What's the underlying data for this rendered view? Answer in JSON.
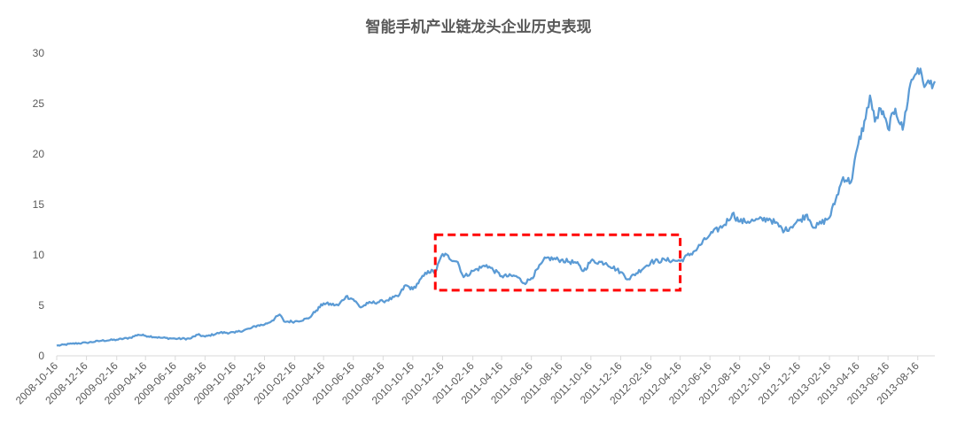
{
  "chart_data": {
    "type": "line",
    "title": "智能手机产业链龙头企业历史表现",
    "xlabel": "",
    "ylabel": "",
    "ylim": [
      0,
      30
    ],
    "yticks": [
      0,
      5,
      10,
      15,
      20,
      25,
      30
    ],
    "xlim": [
      "2008-10-16",
      "2013-09-20"
    ],
    "xticks": [
      "2008-10-16",
      "2008-12-16",
      "2009-02-16",
      "2009-04-16",
      "2009-06-16",
      "2009-08-16",
      "2009-10-16",
      "2009-12-16",
      "2010-02-16",
      "2010-04-16",
      "2010-06-16",
      "2010-08-16",
      "2010-10-16",
      "2010-12-16",
      "2011-02-16",
      "2011-04-16",
      "2011-06-16",
      "2011-08-16",
      "2011-10-16",
      "2011-12-16",
      "2012-02-16",
      "2012-04-16",
      "2012-06-16",
      "2012-08-16",
      "2012-10-16",
      "2012-12-16",
      "2013-02-16",
      "2013-04-16",
      "2013-06-16",
      "2013-08-16"
    ],
    "grid": false,
    "legend": "none",
    "series": [
      {
        "color": "#5b9bd5",
        "points": [
          [
            "2008-10-16",
            1.0
          ],
          [
            "2008-11-16",
            1.2
          ],
          [
            "2008-12-16",
            1.3
          ],
          [
            "2009-01-16",
            1.5
          ],
          [
            "2009-02-16",
            1.6
          ],
          [
            "2009-03-16",
            1.8
          ],
          [
            "2009-04-01",
            2.1
          ],
          [
            "2009-04-16",
            2.0
          ],
          [
            "2009-05-16",
            1.8
          ],
          [
            "2009-06-16",
            1.7
          ],
          [
            "2009-07-16",
            1.7
          ],
          [
            "2009-08-01",
            2.1
          ],
          [
            "2009-08-16",
            1.9
          ],
          [
            "2009-09-16",
            2.3
          ],
          [
            "2009-10-16",
            2.3
          ],
          [
            "2009-11-16",
            2.7
          ],
          [
            "2009-12-01",
            3.0
          ],
          [
            "2009-12-16",
            3.1
          ],
          [
            "2010-01-01",
            3.5
          ],
          [
            "2010-01-16",
            4.1
          ],
          [
            "2010-01-25",
            3.4
          ],
          [
            "2010-02-16",
            3.4
          ],
          [
            "2010-03-16",
            3.7
          ],
          [
            "2010-04-01",
            4.5
          ],
          [
            "2010-04-16",
            5.2
          ],
          [
            "2010-05-16",
            5.0
          ],
          [
            "2010-06-01",
            5.9
          ],
          [
            "2010-06-16",
            5.6
          ],
          [
            "2010-07-01",
            4.8
          ],
          [
            "2010-07-16",
            5.2
          ],
          [
            "2010-08-16",
            5.4
          ],
          [
            "2010-09-16",
            5.9
          ],
          [
            "2010-10-01",
            7.0
          ],
          [
            "2010-10-16",
            6.6
          ],
          [
            "2010-11-16",
            8.4
          ],
          [
            "2010-12-01",
            8.3
          ],
          [
            "2010-12-16",
            10.1
          ],
          [
            "2011-01-16",
            9.3
          ],
          [
            "2011-01-28",
            7.8
          ],
          [
            "2011-02-16",
            8.4
          ],
          [
            "2011-03-16",
            9.0
          ],
          [
            "2011-04-16",
            7.9
          ],
          [
            "2011-05-16",
            7.9
          ],
          [
            "2011-06-01",
            7.2
          ],
          [
            "2011-06-16",
            7.7
          ],
          [
            "2011-07-16",
            9.7
          ],
          [
            "2011-08-16",
            9.5
          ],
          [
            "2011-09-16",
            9.2
          ],
          [
            "2011-10-01",
            8.4
          ],
          [
            "2011-10-16",
            9.4
          ],
          [
            "2011-11-16",
            9.2
          ],
          [
            "2011-12-16",
            8.3
          ],
          [
            "2012-01-01",
            7.6
          ],
          [
            "2012-02-16",
            9.3
          ],
          [
            "2012-03-16",
            9.5
          ],
          [
            "2012-04-16",
            9.4
          ],
          [
            "2012-05-16",
            10.4
          ],
          [
            "2012-06-16",
            12.0
          ],
          [
            "2012-07-16",
            13.0
          ],
          [
            "2012-08-01",
            14.1
          ],
          [
            "2012-08-16",
            13.3
          ],
          [
            "2012-09-16",
            13.4
          ],
          [
            "2012-10-16",
            13.6
          ],
          [
            "2012-11-16",
            12.4
          ],
          [
            "2012-12-16",
            13.4
          ],
          [
            "2013-01-01",
            14.0
          ],
          [
            "2013-01-16",
            12.7
          ],
          [
            "2013-02-16",
            13.7
          ],
          [
            "2013-03-01",
            15.5
          ],
          [
            "2013-03-16",
            17.7
          ],
          [
            "2013-04-01",
            17.2
          ],
          [
            "2013-04-16",
            21.0
          ],
          [
            "2013-05-01",
            23.5
          ],
          [
            "2013-05-10",
            25.8
          ],
          [
            "2013-05-20",
            23.2
          ],
          [
            "2013-06-01",
            24.5
          ],
          [
            "2013-06-16",
            22.5
          ],
          [
            "2013-07-01",
            24.5
          ],
          [
            "2013-07-16",
            22.4
          ],
          [
            "2013-08-01",
            27.0
          ],
          [
            "2013-08-16",
            28.5
          ],
          [
            "2013-09-01",
            26.8
          ],
          [
            "2013-09-20",
            27.2
          ]
        ]
      }
    ],
    "annotations": [
      {
        "type": "dashed-rect",
        "color": "#ff0000",
        "x_range": [
          "2010-12-01",
          "2012-04-16"
        ],
        "y_range": [
          6.5,
          12.0
        ]
      }
    ]
  }
}
